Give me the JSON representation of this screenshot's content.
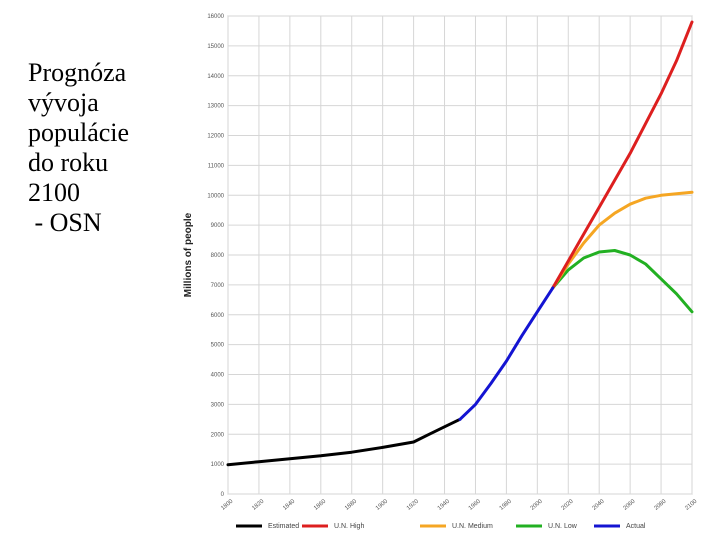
{
  "caption": {
    "lines": [
      "Prognóza",
      "vývoja",
      "populácie",
      "do roku",
      "2100",
      " - OSN"
    ]
  },
  "chart_data": {
    "type": "line",
    "title": "",
    "xlabel": "",
    "ylabel": "Millions of people",
    "xlim": [
      1800,
      2100
    ],
    "ylim": [
      0,
      16000
    ],
    "x_ticks": [
      1800,
      1820,
      1840,
      1860,
      1880,
      1900,
      1920,
      1940,
      1960,
      1980,
      2000,
      2020,
      2040,
      2060,
      2080,
      2100
    ],
    "y_ticks": [
      0,
      1000,
      2000,
      3000,
      4000,
      5000,
      6000,
      7000,
      8000,
      9000,
      10000,
      11000,
      12000,
      13000,
      14000,
      15000,
      16000
    ],
    "grid": true,
    "legend_position": "bottom",
    "series": [
      {
        "name": "Estimated",
        "color": "#000000",
        "points": [
          [
            1800,
            980
          ],
          [
            1820,
            1080
          ],
          [
            1840,
            1180
          ],
          [
            1860,
            1280
          ],
          [
            1880,
            1400
          ],
          [
            1900,
            1560
          ],
          [
            1920,
            1740
          ],
          [
            1930,
            2000
          ],
          [
            1940,
            2250
          ],
          [
            1950,
            2500
          ]
        ]
      },
      {
        "name": "Actual",
        "color": "#1414d2",
        "points": [
          [
            1950,
            2500
          ],
          [
            1960,
            3000
          ],
          [
            1970,
            3700
          ],
          [
            1980,
            4450
          ],
          [
            1990,
            5300
          ],
          [
            2000,
            6100
          ],
          [
            2010,
            6900
          ]
        ]
      },
      {
        "name": "U.N. High",
        "color": "#dd1f1f",
        "points": [
          [
            2010,
            6900
          ],
          [
            2020,
            7800
          ],
          [
            2030,
            8700
          ],
          [
            2040,
            9600
          ],
          [
            2050,
            10500
          ],
          [
            2060,
            11400
          ],
          [
            2070,
            12400
          ],
          [
            2080,
            13400
          ],
          [
            2090,
            14500
          ],
          [
            2100,
            15800
          ]
        ]
      },
      {
        "name": "U.N. Medium",
        "color": "#f5a623",
        "points": [
          [
            2010,
            6900
          ],
          [
            2020,
            7700
          ],
          [
            2030,
            8400
          ],
          [
            2040,
            9000
          ],
          [
            2050,
            9400
          ],
          [
            2060,
            9700
          ],
          [
            2070,
            9900
          ],
          [
            2080,
            10000
          ],
          [
            2090,
            10050
          ],
          [
            2100,
            10100
          ]
        ]
      },
      {
        "name": "U.N. Low",
        "color": "#22b022",
        "points": [
          [
            2010,
            6900
          ],
          [
            2020,
            7500
          ],
          [
            2030,
            7900
          ],
          [
            2040,
            8100
          ],
          [
            2050,
            8150
          ],
          [
            2060,
            8000
          ],
          [
            2070,
            7700
          ],
          [
            2080,
            7200
          ],
          [
            2090,
            6700
          ],
          [
            2100,
            6100
          ]
        ]
      }
    ],
    "legend_order": [
      "Estimated",
      "U.N. High",
      "U.N. Medium",
      "U.N. Low",
      "Actual"
    ]
  }
}
